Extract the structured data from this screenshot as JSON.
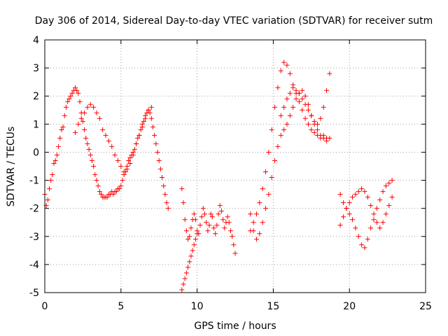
{
  "chart_data": {
    "type": "scatter",
    "title": "Day 306 of 2014, Sidereal Day-to-day VTEC variation (SDTVAR) for receiver sutm",
    "xlabel": "GPS time / hours",
    "ylabel": "SDTVAR / TECUs",
    "xlim": [
      0,
      25
    ],
    "ylim": [
      -5,
      4
    ],
    "x_ticks": [
      "0",
      "5",
      "10",
      "15",
      "20",
      "25"
    ],
    "y_ticks": [
      "-5",
      "-4",
      "-3",
      "-2",
      "-1",
      "0",
      "1",
      "2",
      "3",
      "4"
    ],
    "grid": true,
    "legend": "none",
    "marker": "plus",
    "color": "#ff0000",
    "series": [
      {
        "x": [
          0.0,
          0.1,
          0.2,
          0.3,
          0.4,
          0.5,
          0.6,
          0.7,
          0.8,
          0.9,
          1.0,
          1.1,
          1.2,
          1.3,
          1.4,
          1.5,
          1.6,
          1.7,
          1.8,
          1.9,
          2.0,
          2.1,
          2.2,
          2.3,
          2.4,
          2.5,
          2.6,
          2.7,
          2.8,
          2.9,
          3.0,
          3.1,
          3.2,
          3.3,
          3.4,
          3.5,
          3.6,
          3.7,
          3.8,
          3.9,
          4.0,
          4.1,
          4.2,
          4.3,
          4.4,
          4.5,
          4.6,
          4.7,
          4.8,
          4.9,
          5.0,
          5.1,
          5.2,
          5.3,
          5.4,
          5.5,
          5.6,
          5.7,
          5.8,
          5.9,
          6.0,
          6.1,
          6.2,
          6.3,
          6.4,
          6.5,
          6.6,
          6.7,
          6.8,
          6.9,
          7.0,
          7.1,
          7.2,
          7.3,
          7.4,
          7.5,
          7.6,
          7.7,
          7.8,
          7.9,
          8.0,
          8.1
        ],
        "y": [
          -1.5,
          -1.9,
          -1.7,
          -1.3,
          -1.0,
          -0.8,
          -0.4,
          -0.3,
          -0.1,
          0.2,
          0.5,
          0.8,
          0.9,
          1.3,
          1.6,
          1.8,
          1.9,
          2.0,
          2.1,
          2.2,
          2.3,
          2.2,
          2.1,
          1.8,
          1.4,
          1.1,
          0.8,
          0.5,
          0.3,
          0.1,
          -0.1,
          -0.3,
          -0.5,
          -0.8,
          -1.0,
          -1.2,
          -1.4,
          -1.5,
          -1.6,
          -1.6,
          -1.6,
          -1.6,
          -1.5,
          -1.5,
          -1.4,
          -1.5,
          -1.4,
          -1.4,
          -1.3,
          -1.3,
          -1.2,
          -1.0,
          -0.8,
          -0.7,
          -0.5,
          -0.3,
          -0.2,
          -0.1,
          0.0,
          0.1,
          0.3,
          0.5,
          0.6,
          0.8,
          1.0,
          1.1,
          1.3,
          1.4,
          1.5,
          1.4,
          1.2,
          0.9,
          0.6,
          0.3,
          0.0,
          -0.3,
          -0.6,
          -0.9,
          -1.2,
          -1.5,
          -1.8,
          -2.0
        ]
      },
      {
        "x": [
          2.0,
          2.2,
          2.4,
          2.6,
          2.8,
          3.0,
          3.2,
          3.4,
          3.6,
          3.8,
          4.0,
          4.2,
          4.4,
          4.6,
          4.8,
          5.0,
          5.2,
          5.4,
          5.6,
          5.8,
          6.0,
          6.2,
          6.4,
          6.6,
          6.8,
          7.0
        ],
        "y": [
          0.7,
          1.0,
          1.2,
          1.4,
          1.6,
          1.7,
          1.6,
          1.4,
          1.2,
          0.8,
          0.6,
          0.4,
          0.2,
          -0.1,
          -0.3,
          -0.5,
          -0.7,
          -0.6,
          -0.4,
          -0.1,
          0.3,
          0.6,
          0.9,
          1.2,
          1.5,
          1.6
        ]
      },
      {
        "x": [
          9.0,
          9.1,
          9.2,
          9.3,
          9.4,
          9.5,
          9.6,
          9.7,
          9.8,
          9.9,
          10.0,
          10.1,
          10.2,
          10.3,
          10.4,
          10.5,
          10.6,
          10.7,
          10.8,
          10.9,
          11.0,
          11.1,
          11.2,
          11.3,
          11.4,
          11.5,
          11.6,
          11.7,
          11.8,
          11.9,
          12.0,
          12.1,
          12.2,
          12.3,
          12.4,
          12.5
        ],
        "y": [
          -1.3,
          -1.8,
          -2.4,
          -2.8,
          -3.1,
          -3.0,
          -2.7,
          -2.4,
          -2.2,
          -2.4,
          -2.8,
          -2.9,
          -2.6,
          -2.3,
          -2.0,
          -2.2,
          -2.5,
          -2.8,
          -2.6,
          -2.2,
          -2.3,
          -2.7,
          -2.9,
          -2.6,
          -2.2,
          -1.9,
          -2.1,
          -2.4,
          -2.7,
          -2.5,
          -2.3,
          -2.5,
          -2.8,
          -3.0,
          -3.3,
          -3.6
        ]
      },
      {
        "x": [
          9.0,
          9.1,
          9.2,
          9.3,
          9.4,
          9.5,
          9.6,
          9.7,
          9.8,
          9.9,
          10.0
        ],
        "y": [
          -4.9,
          -4.7,
          -4.5,
          -4.3,
          -4.1,
          -3.9,
          -3.7,
          -3.5,
          -3.3,
          -3.1,
          -2.9
        ]
      },
      {
        "x": [
          13.5,
          13.7,
          13.9,
          14.1,
          14.3,
          14.5,
          14.7,
          14.9,
          15.1,
          15.3,
          15.5,
          15.7,
          15.9,
          16.1,
          16.3,
          16.5,
          16.7,
          16.9,
          17.1,
          17.3,
          17.5,
          17.7,
          17.9,
          18.1,
          18.3,
          18.5,
          18.7
        ],
        "y": [
          -2.8,
          -2.5,
          -2.2,
          -1.8,
          -1.3,
          -0.7,
          0.0,
          0.8,
          1.6,
          2.3,
          2.9,
          3.2,
          3.1,
          2.8,
          2.4,
          2.1,
          1.8,
          1.5,
          1.2,
          1.0,
          0.8,
          0.7,
          0.6,
          0.5,
          0.6,
          0.5,
          0.5
        ]
      },
      {
        "x": [
          13.5,
          13.7,
          13.9,
          14.1,
          14.3,
          14.5,
          14.7,
          14.9,
          15.1,
          15.3,
          15.5,
          15.7,
          15.9,
          16.1,
          16.3,
          16.5,
          16.7,
          16.9,
          17.1,
          17.3,
          17.5,
          17.7,
          17.9,
          18.1,
          18.3,
          18.5
        ],
        "y": [
          -2.2,
          -2.8,
          -3.1,
          -2.9,
          -2.5,
          -2.0,
          -1.5,
          -0.9,
          -0.3,
          0.2,
          0.6,
          0.8,
          1.0,
          1.3,
          1.6,
          1.9,
          2.1,
          2.2,
          2.0,
          1.7,
          1.3,
          1.0,
          0.8,
          0.6,
          0.5,
          0.4
        ]
      },
      {
        "x": [
          15.5,
          15.7,
          15.9,
          16.1,
          16.3,
          16.5,
          16.7,
          16.9,
          17.1,
          17.3,
          17.5,
          17.7,
          17.9,
          18.1,
          18.3,
          18.5,
          18.7
        ],
        "y": [
          1.3,
          1.6,
          1.9,
          2.1,
          2.3,
          2.2,
          2.1,
          1.9,
          1.7,
          1.5,
          1.3,
          1.1,
          1.0,
          1.2,
          1.6,
          2.2,
          2.8
        ]
      },
      {
        "x": [
          19.4,
          19.6,
          19.8,
          20.0,
          20.2,
          20.4,
          20.6,
          20.8,
          21.0,
          21.2,
          21.4,
          21.6,
          21.8,
          22.0,
          22.2,
          22.4,
          22.6,
          22.8
        ],
        "y": [
          -1.5,
          -1.8,
          -2.0,
          -2.2,
          -2.4,
          -2.7,
          -3.0,
          -3.3,
          -3.4,
          -3.1,
          -2.7,
          -2.4,
          -2.0,
          -1.7,
          -1.4,
          -1.2,
          -1.1,
          -1.0
        ]
      },
      {
        "x": [
          19.4,
          19.6,
          19.8,
          20.0,
          20.2,
          20.4,
          20.6,
          20.8,
          21.0,
          21.2,
          21.4,
          21.6,
          21.8,
          22.0,
          22.2,
          22.4,
          22.6,
          22.8
        ],
        "y": [
          -2.6,
          -2.3,
          -2.0,
          -1.8,
          -1.6,
          -1.5,
          -1.4,
          -1.3,
          -1.4,
          -1.6,
          -1.9,
          -2.2,
          -2.5,
          -2.7,
          -2.5,
          -2.2,
          -1.9,
          -1.6
        ]
      }
    ]
  }
}
